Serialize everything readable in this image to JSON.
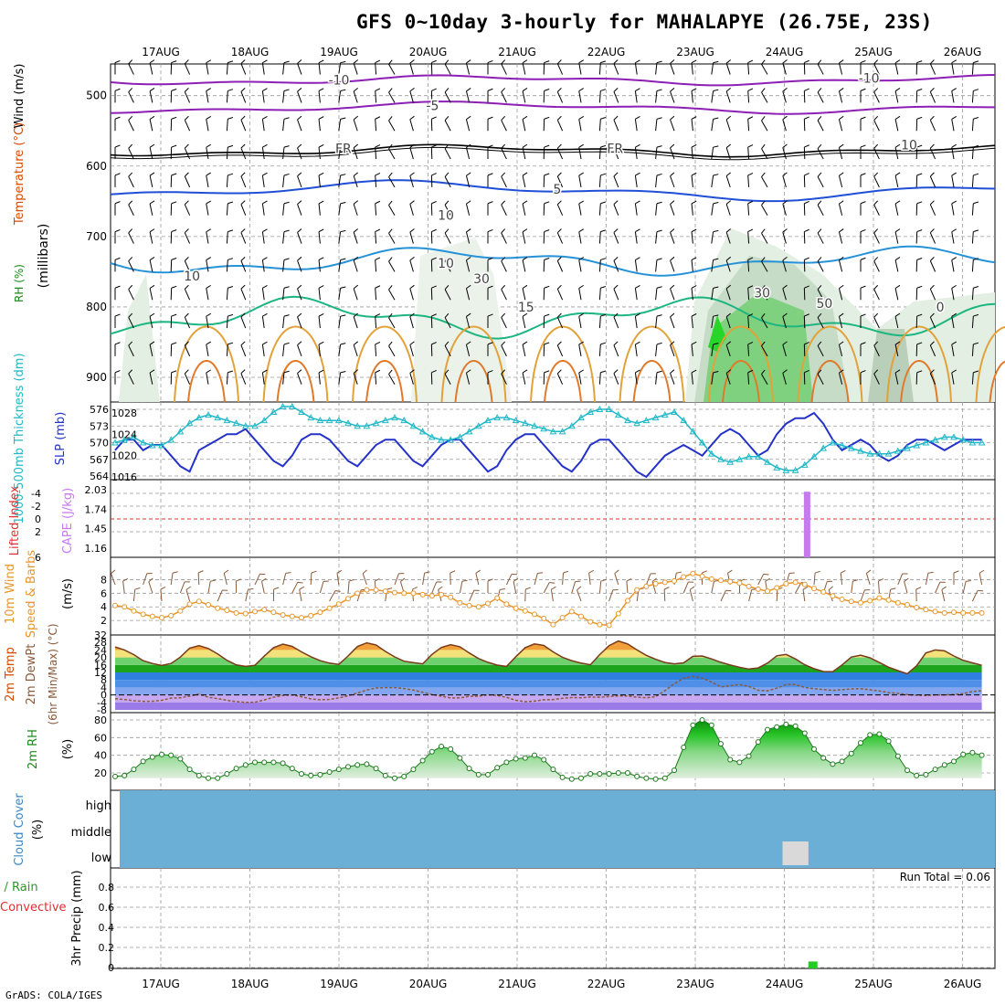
{
  "title": "GFS 0~10day 3-hourly for MAHALAPYE (26.75E, 23S)",
  "credit": "GrADS: COLA/IGES",
  "chart_data": [
    {
      "id": "upper_air",
      "type": "contour",
      "ylabel_parts": [
        "RH (%)",
        "Temperature (°C)",
        "Wind (m/s)"
      ],
      "ylabel_unit": "(millibars)",
      "y_ticks": [
        500,
        600,
        700,
        800,
        900
      ],
      "x_dates": [
        "17AUG",
        "18AUG",
        "19AUG",
        "20AUG",
        "21AUG",
        "22AUG",
        "23AUG",
        "24AUG",
        "25AUG",
        "26AUG"
      ],
      "contour_labels": [
        {
          "text": "-10",
          "p": 478,
          "day": 2.0
        },
        {
          "text": "-10",
          "p": 475,
          "day": 7.95
        },
        {
          "text": "-5",
          "p": 514,
          "day": 3.05
        },
        {
          "text": "FR",
          "p": 575,
          "day": 2.05
        },
        {
          "text": "FR",
          "p": 575,
          "day": 5.1
        },
        {
          "text": "10",
          "p": 570,
          "day": 8.4
        },
        {
          "text": "5",
          "p": 633,
          "day": 4.45
        },
        {
          "text": "10",
          "p": 670,
          "day": 3.2
        },
        {
          "text": "10",
          "p": 738,
          "day": 3.2
        },
        {
          "text": "10",
          "p": 756,
          "day": 0.35
        },
        {
          "text": "30",
          "p": 760,
          "day": 3.6
        },
        {
          "text": "15",
          "p": 800,
          "day": 4.1
        },
        {
          "text": "30",
          "p": 780,
          "day": 6.75
        },
        {
          "text": "50",
          "p": 795,
          "day": 7.45
        },
        {
          "text": "0",
          "p": 800,
          "day": 8.75
        }
      ]
    },
    {
      "id": "slp_thickness",
      "type": "line",
      "ylabel_left": "1000-500mb Thickness (dm)",
      "ylabel_right": "SLP (mb)",
      "left_ticks": [
        564,
        567,
        570,
        573,
        576
      ],
      "right_ticks": [
        1016,
        1020,
        1024,
        1028
      ],
      "slp": [
        1021,
        1023,
        1023,
        1021,
        1022,
        1022,
        1020,
        1018,
        1017,
        1021,
        1022,
        1023,
        1024,
        1024,
        1025,
        1023,
        1021,
        1019,
        1018,
        1020,
        1023,
        1024,
        1024,
        1023,
        1021,
        1019,
        1018,
        1020,
        1022,
        1023,
        1023,
        1021,
        1019,
        1018,
        1020,
        1022,
        1023,
        1023,
        1021,
        1019,
        1017,
        1018,
        1021,
        1023,
        1024,
        1024,
        1022,
        1020,
        1018,
        1017,
        1019,
        1022,
        1023,
        1023,
        1021,
        1019,
        1017,
        1016,
        1018,
        1020,
        1021,
        1022,
        1021,
        1020,
        1022,
        1024,
        1025,
        1024,
        1022,
        1020,
        1021,
        1024,
        1026,
        1027,
        1027,
        1028,
        1026,
        1023,
        1021,
        1022,
        1023,
        1022,
        1020,
        1019,
        1020,
        1022,
        1023,
        1023,
        1022,
        1021,
        1022,
        1023,
        1023,
        1023
      ],
      "thickness": [
        570,
        570.5,
        571,
        570,
        569.5,
        569.5,
        570.5,
        572,
        573.5,
        574.5,
        575,
        574.5,
        574,
        573.5,
        573,
        573,
        574,
        575.5,
        576.5,
        576.5,
        575.5,
        574.5,
        574,
        574,
        574,
        573.5,
        573,
        573,
        573.5,
        574,
        574.5,
        574,
        573,
        572,
        571,
        570.5,
        570.5,
        571,
        572,
        573,
        574,
        574.5,
        574.5,
        574,
        573.5,
        573,
        572.5,
        572,
        572,
        573,
        574.5,
        575.5,
        576,
        576,
        575,
        574,
        573.5,
        574,
        574.5,
        575,
        575.5,
        574,
        572,
        570,
        568,
        567,
        566.5,
        567,
        567.5,
        567.5,
        566.5,
        565.5,
        565,
        565,
        566,
        567.5,
        569,
        570,
        569.5,
        569,
        568.5,
        568,
        568,
        568,
        568.5,
        569,
        569.5,
        570,
        570.5,
        571,
        571,
        570.5,
        570,
        570
      ]
    },
    {
      "id": "cape_li",
      "type": "bar",
      "ylabel_left": "Lifted Index",
      "ylabel_right": "CAPE (J/kg)",
      "left_ticks": [
        6,
        2,
        0,
        -2,
        -4
      ],
      "right_ticks": [
        1.16,
        1.45,
        1.74,
        2.03
      ],
      "bars": [
        {
          "day": 7.25,
          "cape": 2.0
        }
      ]
    },
    {
      "id": "wind10m",
      "type": "line",
      "ylabel_parts": [
        "10m Wind",
        "Speed & Barbs"
      ],
      "ylabel_unit": "(m/s)",
      "y_ticks": [
        2,
        4,
        6,
        8
      ],
      "values": [
        4.2,
        4.0,
        3.4,
        2.9,
        2.6,
        2.4,
        2.7,
        3.4,
        4.4,
        4.8,
        4.3,
        3.8,
        3.5,
        3.1,
        3.0,
        3.3,
        3.6,
        3.2,
        2.8,
        2.6,
        2.4,
        2.7,
        3.2,
        3.8,
        4.4,
        5.2,
        6.0,
        6.5,
        6.5,
        6.3,
        6.1,
        6.0,
        6.0,
        5.8,
        5.6,
        5.8,
        5.4,
        4.6,
        4.2,
        4.0,
        4.5,
        5.3,
        4.4,
        3.8,
        3.4,
        2.9,
        2.3,
        1.4,
        2.4,
        3.3,
        2.6,
        1.8,
        1.4,
        1.3,
        3.0,
        4.9,
        6.5,
        7.0,
        7.4,
        7.6,
        7.8,
        8.4,
        8.9,
        8.5,
        8.1,
        7.9,
        7.7,
        7.5,
        7.0,
        6.6,
        6.3,
        6.8,
        7.4,
        7.6,
        7.3,
        6.7,
        6.2,
        5.6,
        5.1,
        4.8,
        4.6,
        4.9,
        5.3,
        5.0,
        4.6,
        4.3,
        3.9,
        3.6,
        3.3,
        3.1,
        3.2,
        3.1,
        3.1,
        3.1
      ]
    },
    {
      "id": "temperature",
      "type": "area",
      "ylabel_parts": [
        "2m Temp",
        "2m DewPt",
        "(6hr Min/Max) (°C)"
      ],
      "y_ticks": [
        -8,
        -4,
        0,
        4,
        8,
        12,
        16,
        20,
        24,
        28,
        32
      ],
      "temp": [
        25.6,
        24.0,
        21.5,
        18.3,
        16.8,
        15.7,
        16.8,
        20.2,
        25.0,
        26.3,
        24.8,
        21.9,
        18.5,
        16.0,
        15.2,
        15.8,
        20.7,
        25.2,
        27.1,
        25.9,
        23.0,
        20.4,
        18.3,
        17.0,
        16.3,
        20.8,
        25.8,
        27.8,
        26.7,
        23.2,
        20.3,
        18.0,
        17.2,
        16.6,
        21.6,
        25.3,
        26.8,
        25.7,
        22.4,
        19.4,
        17.4,
        15.9,
        15.2,
        20.4,
        25.2,
        27.2,
        26.4,
        23.0,
        20.1,
        18.3,
        17.0,
        16.1,
        21.5,
        26.3,
        28.8,
        27.2,
        24.0,
        21.1,
        19.0,
        17.3,
        16.6,
        17.1,
        20.6,
        20.8,
        19.2,
        17.4,
        16.0,
        14.8,
        13.8,
        14.4,
        17.0,
        20.9,
        21.6,
        19.2,
        16.1,
        14.0,
        12.5,
        12.4,
        16.0,
        20.2,
        21.2,
        19.8,
        17.3,
        14.8,
        13.0,
        11.3,
        15.5,
        22.4,
        24.0,
        23.5,
        20.8,
        18.5,
        17.1,
        15.8
      ],
      "dewpt": [
        -2.0,
        -2.5,
        -3.1,
        -3.4,
        -3.4,
        -2.9,
        -1.7,
        -1.5,
        -0.7,
        0.4,
        -1.2,
        -2.0,
        -2.9,
        -3.6,
        -4.0,
        -3.9,
        -2.7,
        -1.2,
        -0.3,
        0.0,
        -1.0,
        -2.1,
        -2.6,
        -2.4,
        -1.6,
        -0.5,
        1.0,
        2.6,
        3.7,
        3.9,
        3.9,
        3.4,
        2.6,
        1.4,
        0.2,
        -0.7,
        -1.6,
        -1.6,
        -0.8,
        -0.7,
        0.1,
        -0.3,
        -1.3,
        -2.9,
        -3.6,
        -3.3,
        -2.6,
        -2.5,
        -1.8,
        -1.4,
        -1.5,
        -1.1,
        -1.2,
        -0.9,
        -0.5,
        -0.6,
        -1.2,
        -1.5,
        -1.0,
        2.3,
        6.0,
        8.9,
        9.9,
        9.0,
        6.9,
        4.3,
        4.9,
        5.5,
        4.6,
        2.5,
        2.2,
        3.6,
        5.5,
        5.5,
        4.0,
        3.3,
        2.9,
        2.4,
        2.8,
        3.2,
        3.3,
        2.8,
        2.1,
        1.2,
        0.8,
        0.2,
        -0.2,
        -0.3,
        0.0,
        0.0,
        0.2,
        0.7,
        1.8,
        2.2
      ]
    },
    {
      "id": "rh2m",
      "type": "area",
      "ylabel": "2m RH",
      "ylabel_unit": "(%)",
      "y_ticks": [
        20,
        40,
        60,
        80
      ],
      "values": [
        16,
        17,
        24,
        33,
        38,
        41,
        40,
        36,
        24,
        17,
        14,
        14,
        19,
        25,
        29,
        32,
        32,
        32,
        31,
        25,
        19,
        17,
        18,
        21,
        24,
        27,
        29,
        30,
        25,
        17,
        14,
        16,
        24,
        34,
        44,
        50,
        47,
        37,
        25,
        18,
        18,
        26,
        32,
        36,
        37,
        40,
        35,
        24,
        15,
        13,
        14,
        19,
        19,
        19,
        20,
        20,
        16,
        14,
        13,
        14,
        23,
        49,
        74,
        80,
        74,
        53,
        35,
        32,
        39,
        55,
        69,
        72,
        75,
        73,
        65,
        47,
        37,
        30,
        33,
        42,
        54,
        63,
        64,
        56,
        39,
        23,
        17,
        18,
        24,
        29,
        33,
        41,
        43,
        40
      ]
    },
    {
      "id": "cloud_cover",
      "type": "heatmap",
      "ylabel": "Cloud Cover",
      "ylabel_unit": "(%)",
      "levels": [
        "high",
        "middle",
        "low"
      ],
      "clear_cells": [
        {
          "level": "low",
          "day_start": 7.0,
          "day_end": 7.25
        }
      ]
    },
    {
      "id": "precip",
      "type": "bar",
      "ylabel_left": "Total / Rain",
      "ylabel_left2": "Convective",
      "ylabel": "3hr Precip (mm)",
      "y_ticks": [
        0,
        0.2,
        0.4,
        0.6,
        0.8
      ],
      "run_total": "Run Total = 0.06",
      "bars": [
        {
          "day": 7.3,
          "value": 0.06,
          "kind": "rain"
        }
      ]
    }
  ]
}
